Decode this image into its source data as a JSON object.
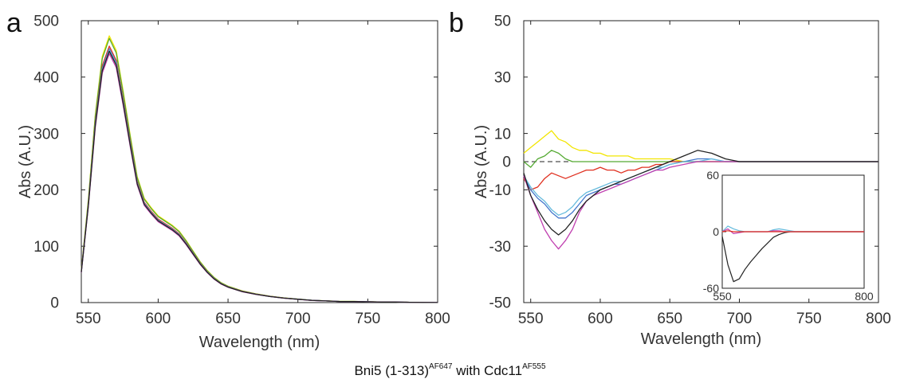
{
  "figure": {
    "caption_prefix": "Bni5 (1-313)",
    "caption_sup1": "AF647",
    "caption_mid": " with Cdc11",
    "caption_sup2": "AF555"
  },
  "chart_data": [
    {
      "panel_label": "a",
      "type": "line",
      "title": "",
      "xlabel": "Wavelength (nm)",
      "ylabel": "Abs (A.U.)",
      "xlim": [
        545,
        800
      ],
      "ylim": [
        0,
        500
      ],
      "xticks": [
        550,
        600,
        650,
        700,
        750,
        800
      ],
      "yticks": [
        0,
        100,
        200,
        300,
        400,
        500
      ],
      "grid": false,
      "legend": "none",
      "x": [
        545,
        550,
        555,
        560,
        565,
        570,
        575,
        580,
        585,
        590,
        595,
        600,
        605,
        610,
        615,
        620,
        625,
        630,
        635,
        640,
        645,
        650,
        660,
        670,
        680,
        690,
        700,
        710,
        720,
        730,
        740,
        750,
        760,
        770,
        780,
        790,
        800
      ],
      "base": [
        55,
        175,
        320,
        420,
        455,
        430,
        360,
        285,
        215,
        178,
        162,
        148,
        140,
        132,
        122,
        106,
        88,
        70,
        55,
        43,
        34,
        28,
        20,
        15,
        11,
        8,
        6,
        4,
        3,
        2,
        2,
        1.5,
        1,
        1,
        0.5,
        0.3,
        0.2
      ],
      "series": [
        {
          "color": "#f2e500",
          "scale": 1.04
        },
        {
          "color": "#55aa33",
          "scale": 1.03
        },
        {
          "color": "#e03020",
          "scale": 1.0
        },
        {
          "color": "#4477cc",
          "scale": 0.99
        },
        {
          "color": "#66bbdd",
          "scale": 0.985
        },
        {
          "color": "#c040b0",
          "scale": 0.97
        },
        {
          "color": "#222222",
          "scale": 0.98
        }
      ]
    },
    {
      "panel_label": "b",
      "type": "line",
      "title": "",
      "xlabel": "Wavelength (nm)",
      "ylabel": "Abs (A.U.)",
      "xlim": [
        545,
        800
      ],
      "ylim": [
        -50,
        50
      ],
      "xticks": [
        550,
        600,
        650,
        700,
        750,
        800
      ],
      "yticks": [
        -50,
        -30,
        -10,
        0,
        10,
        30,
        50
      ],
      "grid": false,
      "legend": "none",
      "zero_line": "dashed",
      "x": [
        545,
        550,
        555,
        560,
        565,
        570,
        575,
        580,
        585,
        590,
        595,
        600,
        605,
        610,
        615,
        620,
        625,
        630,
        635,
        640,
        645,
        650,
        660,
        670,
        680,
        690,
        700,
        710,
        720,
        730,
        740,
        750,
        760,
        770,
        780,
        790,
        800
      ],
      "series": [
        {
          "color": "#f2e500",
          "values": [
            3,
            5,
            7,
            9,
            11,
            8,
            7,
            5,
            4,
            4,
            3,
            3,
            2,
            2,
            2,
            2,
            1,
            1,
            1,
            1,
            1,
            1,
            0,
            0,
            0,
            0,
            0,
            0,
            0,
            0,
            0,
            0,
            0,
            0,
            0,
            0,
            0
          ]
        },
        {
          "color": "#55aa33",
          "values": [
            0,
            -2,
            1,
            2,
            4,
            3,
            1,
            0,
            0,
            0,
            0,
            0,
            0,
            0,
            0,
            0,
            0,
            0,
            0,
            0,
            0,
            0,
            0,
            0,
            0,
            0,
            0,
            0,
            0,
            0,
            0,
            0,
            0,
            0,
            0,
            0,
            0
          ]
        },
        {
          "color": "#e03020",
          "values": [
            -6,
            -10,
            -9,
            -6,
            -4,
            -5,
            -6,
            -5,
            -4,
            -3,
            -3,
            -2,
            -3,
            -3,
            -4,
            -3,
            -3,
            -2,
            -2,
            -1,
            -1,
            0,
            0,
            0,
            0,
            0,
            0,
            0,
            0,
            0,
            0,
            0,
            0,
            0,
            0,
            0,
            0
          ]
        },
        {
          "color": "#4477cc",
          "values": [
            -5,
            -10,
            -13,
            -15,
            -18,
            -20,
            -20,
            -18,
            -15,
            -12,
            -11,
            -10,
            -9,
            -8,
            -8,
            -7,
            -6,
            -5,
            -4,
            -3,
            -2,
            -1,
            0,
            1,
            1,
            0,
            0,
            0,
            0,
            0,
            0,
            0,
            0,
            0,
            0,
            0,
            0
          ]
        },
        {
          "color": "#66bbdd",
          "values": [
            -5,
            -9,
            -12,
            -14,
            -17,
            -19,
            -18,
            -16,
            -13,
            -11,
            -10,
            -9,
            -8,
            -7,
            -7,
            -6,
            -5,
            -4,
            -3,
            -2,
            -2,
            -1,
            0,
            0,
            1,
            0,
            0,
            0,
            0,
            0,
            0,
            0,
            0,
            0,
            0,
            0,
            0
          ]
        },
        {
          "color": "#c040b0",
          "values": [
            -5,
            -12,
            -18,
            -24,
            -28,
            -31,
            -28,
            -24,
            -18,
            -14,
            -12,
            -11,
            -10,
            -9,
            -8,
            -7,
            -6,
            -5,
            -4,
            -3,
            -3,
            -2,
            -1,
            0,
            0,
            0,
            0,
            0,
            0,
            0,
            0,
            0,
            0,
            0,
            0,
            0,
            0
          ]
        },
        {
          "color": "#222222",
          "values": [
            -4,
            -12,
            -17,
            -21,
            -24,
            -26,
            -24,
            -21,
            -17,
            -14,
            -12,
            -10,
            -9,
            -8,
            -7,
            -6,
            -5,
            -4,
            -3,
            -2,
            -1,
            0,
            2,
            4,
            3,
            1,
            0,
            0,
            0,
            0,
            0,
            0,
            0,
            0,
            0,
            0,
            0
          ]
        }
      ],
      "inset": {
        "xlim": [
          550,
          800
        ],
        "ylim": [
          -60,
          60
        ],
        "xticks": [
          550,
          800
        ],
        "yticks": [
          -60,
          0,
          60
        ],
        "x": [
          550,
          560,
          570,
          580,
          590,
          600,
          610,
          620,
          630,
          640,
          650,
          660,
          670,
          680,
          690,
          700,
          720,
          740,
          760,
          780,
          800
        ],
        "series": [
          {
            "color": "#222222",
            "values": [
              -5,
              -35,
              -53,
              -50,
              -40,
              -32,
              -25,
              -18,
              -12,
              -6,
              -3,
              -1,
              0,
              0,
              0,
              0,
              0,
              0,
              0,
              0,
              0
            ]
          },
          {
            "color": "#66bbdd",
            "values": [
              0,
              6,
              3,
              1,
              0,
              0,
              0,
              0,
              0,
              2,
              3,
              2,
              1,
              0,
              0,
              0,
              0,
              0,
              0,
              0,
              0
            ]
          },
          {
            "color": "#c040b0",
            "values": [
              0,
              3,
              -2,
              -1,
              0,
              0,
              0,
              0,
              0,
              1,
              1,
              0,
              0,
              0,
              0,
              0,
              0,
              0,
              0,
              0,
              0
            ]
          },
          {
            "color": "#e03020",
            "values": [
              0,
              1,
              0,
              0,
              0,
              0,
              0,
              0,
              0,
              0,
              0,
              0,
              0,
              0,
              0,
              0,
              0,
              0,
              0,
              0,
              0
            ]
          }
        ]
      }
    }
  ]
}
